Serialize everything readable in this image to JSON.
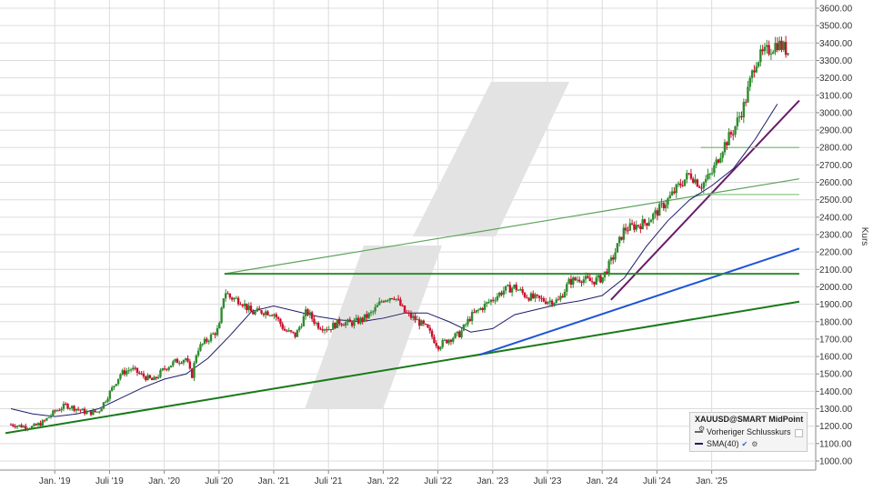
{
  "chart_data": {
    "type": "candlestick",
    "instrument": "XAUUSD@SMART MidPoint",
    "ylabel": "Kurs",
    "ylim": [
      950,
      3650
    ],
    "y_ticks": [
      "1000.00",
      "1100.00",
      "1200.00",
      "1300.00",
      "1400.00",
      "1500.00",
      "1600.00",
      "1700.00",
      "1800.00",
      "1900.00",
      "2000.00",
      "2100.00",
      "2200.00",
      "2300.00",
      "2400.00",
      "2500.00",
      "2600.00",
      "2700.00",
      "2800.00",
      "2900.00",
      "3000.00",
      "3100.00",
      "3200.00",
      "3300.00",
      "3400.00",
      "3500.00",
      "3600.00"
    ],
    "x_ticks": [
      "Jan. '19",
      "Juli '19",
      "Jan. '20",
      "Juli '20",
      "Jan. '21",
      "Juli '21",
      "Jan. '22",
      "Juli '22",
      "Jan. '23",
      "Juli '23",
      "Jan. '24",
      "Juli '24",
      "Jan. '25"
    ],
    "grid": true,
    "legend": {
      "position": "bottom-right",
      "title": "XAUUSD@SMART MidPoint",
      "entries": [
        "Vorheriger Schlusskurs",
        "SMA(40)"
      ]
    },
    "series": [
      {
        "name": "XAUUSD@SMART MidPoint",
        "kind": "weekly-close",
        "x": [
          2018.6,
          2018.7,
          2018.8,
          2018.9,
          2019.0,
          2019.1,
          2019.2,
          2019.3,
          2019.4,
          2019.5,
          2019.6,
          2019.7,
          2019.8,
          2019.9,
          2020.0,
          2020.1,
          2020.2,
          2020.25,
          2020.3,
          2020.4,
          2020.5,
          2020.55,
          2020.6,
          2020.7,
          2020.8,
          2020.9,
          2021.0,
          2021.1,
          2021.2,
          2021.3,
          2021.4,
          2021.5,
          2021.6,
          2021.7,
          2021.8,
          2021.9,
          2022.0,
          2022.1,
          2022.2,
          2022.3,
          2022.4,
          2022.5,
          2022.6,
          2022.7,
          2022.8,
          2022.9,
          2023.0,
          2023.1,
          2023.2,
          2023.3,
          2023.4,
          2023.5,
          2023.6,
          2023.7,
          2023.8,
          2023.9,
          2024.0,
          2024.1,
          2024.2,
          2024.3,
          2024.4,
          2024.5,
          2024.6,
          2024.7,
          2024.8,
          2024.9,
          2025.0,
          2025.1,
          2025.2,
          2025.3,
          2025.4,
          2025.5,
          2025.6,
          2025.7
        ],
        "values": [
          1210,
          1200,
          1195,
          1225,
          1285,
          1320,
          1300,
          1275,
          1285,
          1390,
          1500,
          1530,
          1490,
          1460,
          1530,
          1570,
          1590,
          1480,
          1640,
          1700,
          1760,
          1980,
          1940,
          1920,
          1850,
          1860,
          1850,
          1750,
          1720,
          1860,
          1780,
          1760,
          1800,
          1790,
          1810,
          1850,
          1930,
          1950,
          1850,
          1810,
          1760,
          1660,
          1700,
          1730,
          1830,
          1880,
          1930,
          1980,
          2000,
          1950,
          1930,
          1920,
          1920,
          2030,
          2050,
          2030,
          2050,
          2170,
          2330,
          2350,
          2370,
          2430,
          2500,
          2580,
          2650,
          2580,
          2650,
          2800,
          2900,
          3050,
          3300,
          3350,
          3400,
          3350
        ],
        "color": "#c8102e"
      },
      {
        "name": "SMA(40)",
        "kind": "line",
        "x": [
          2018.6,
          2018.8,
          2019.0,
          2019.2,
          2019.4,
          2019.6,
          2019.8,
          2020.0,
          2020.2,
          2020.4,
          2020.6,
          2020.8,
          2021.0,
          2021.2,
          2021.4,
          2021.6,
          2021.8,
          2022.0,
          2022.2,
          2022.4,
          2022.6,
          2022.8,
          2023.0,
          2023.2,
          2023.4,
          2023.6,
          2023.8,
          2024.0,
          2024.2,
          2024.4,
          2024.6,
          2024.8,
          2025.0,
          2025.2,
          2025.4,
          2025.6
        ],
        "values": [
          1300,
          1270,
          1255,
          1270,
          1300,
          1360,
          1420,
          1470,
          1500,
          1590,
          1720,
          1860,
          1890,
          1860,
          1830,
          1810,
          1800,
          1820,
          1850,
          1850,
          1800,
          1740,
          1760,
          1840,
          1870,
          1900,
          1920,
          1950,
          2050,
          2230,
          2380,
          2500,
          2580,
          2680,
          2850,
          3050
        ],
        "color": "#1c1c6c"
      }
    ],
    "trendlines": [
      {
        "from": [
          2018.55,
          1160
        ],
        "to": [
          2025.8,
          1915
        ],
        "color": "#1a7a1a"
      },
      {
        "from": [
          2022.88,
          1610
        ],
        "to": [
          2025.8,
          2220
        ],
        "color": "#1f55d6"
      },
      {
        "from": [
          2024.08,
          1925
        ],
        "to": [
          2025.8,
          3070
        ],
        "color": "#6a1a6a"
      },
      {
        "from": [
          2020.55,
          2075
        ],
        "to": [
          2025.8,
          2620
        ],
        "color": "#5aa35a"
      },
      {
        "from": [
          2020.55,
          2075
        ],
        "to": [
          2025.8,
          2075
        ],
        "color": "#2e8b2e"
      },
      {
        "from": [
          2024.9,
          2800
        ],
        "to": [
          2025.8,
          2800
        ],
        "color": "#7dc07d"
      },
      {
        "from": [
          2024.85,
          2530
        ],
        "to": [
          2025.8,
          2530
        ],
        "color": "#7dc07d"
      }
    ]
  }
}
